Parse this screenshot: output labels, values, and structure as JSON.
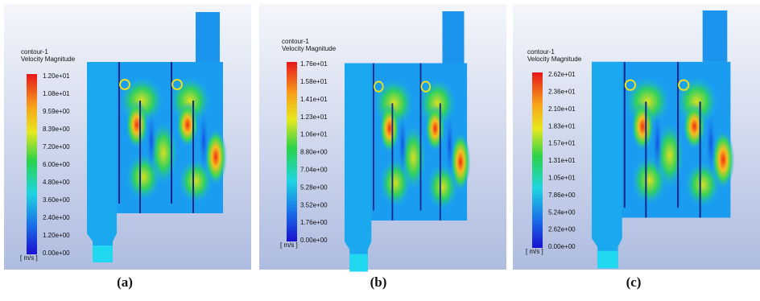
{
  "panels": [
    {
      "title": "contour-1",
      "subtitle": "Velocity Magnitude",
      "unit": "[ m/s ]",
      "caption": "(a)",
      "scale_labels": [
        "1.20e+01",
        "1.08e+01",
        "9.59e+00",
        "8.39e+00",
        "7.20e+00",
        "6.00e+00",
        "4.80e+00",
        "3.60e+00",
        "2.40e+00",
        "1.20e+00",
        "0.00e+00"
      ]
    },
    {
      "title": "contour-1",
      "subtitle": "Velocity Magnitude",
      "unit": "[ m/s ]",
      "caption": "(b)",
      "scale_labels": [
        "1.76e+01",
        "1.58e+01",
        "1.41e+01",
        "1.23e+01",
        "1.06e+01",
        "8.80e+00",
        "7.04e+00",
        "5.28e+00",
        "3.52e+00",
        "1.76e+00",
        "0.00e+00"
      ]
    },
    {
      "title": "contour-1",
      "subtitle": "Velocity Magnitude",
      "unit": "[ m/s ]",
      "caption": "(c)",
      "scale_labels": [
        "2.62e+01",
        "2.36e+01",
        "2.10e+01",
        "1.83e+01",
        "1.57e+01",
        "1.31e+01",
        "1.05e+01",
        "7.86e+00",
        "5.24e+00",
        "2.62e+00",
        "0.00e+00"
      ]
    }
  ]
}
